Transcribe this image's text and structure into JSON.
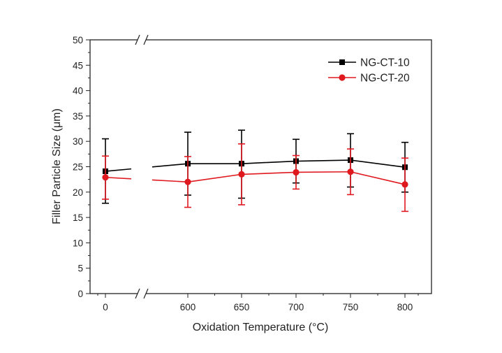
{
  "chart_data": {
    "type": "line",
    "title": "",
    "xlabel": "Oxidation Temperature (°C)",
    "ylabel": "Filler Particle Size (μm)",
    "ylim": [
      0,
      50
    ],
    "yticks": [
      0,
      5,
      10,
      15,
      20,
      25,
      30,
      35,
      40,
      45,
      50
    ],
    "x_categories": [
      "0",
      "600",
      "650",
      "700",
      "750",
      "800"
    ],
    "x_break_after": "0",
    "grid": false,
    "legend_position": "top-right",
    "series": [
      {
        "name": "NG-CT-10",
        "color": "#000000",
        "marker": "square",
        "values": [
          24.1,
          25.6,
          25.6,
          26.1,
          26.3,
          24.9
        ],
        "error_low": [
          17.8,
          19.4,
          18.8,
          21.8,
          21.0,
          20.0
        ],
        "error_high": [
          30.5,
          31.8,
          32.2,
          30.4,
          31.5,
          29.8
        ]
      },
      {
        "name": "NG-CT-20",
        "color": "#e0191f",
        "marker": "circle",
        "values": [
          22.9,
          22.0,
          23.5,
          23.9,
          24.0,
          21.5
        ],
        "error_low": [
          18.6,
          17.0,
          17.5,
          20.6,
          19.5,
          16.2
        ],
        "error_high": [
          27.1,
          27.0,
          29.5,
          27.2,
          28.5,
          26.7
        ]
      }
    ]
  }
}
